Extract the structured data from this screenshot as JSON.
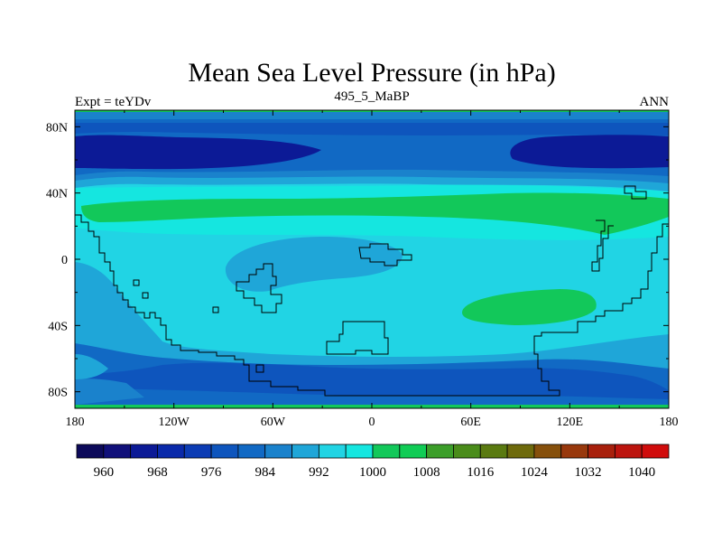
{
  "chart_data": {
    "type": "heatmap",
    "title": "Mean Sea Level Pressure (in hPa)",
    "left_label": "Expt = teYDv",
    "center_label": "495_5_MaBP",
    "right_label": "ANN",
    "x_ticks": [
      "180",
      "120W",
      "60W",
      "0",
      "60E",
      "120E",
      "180"
    ],
    "x_tick_values": [
      -180,
      -120,
      -60,
      0,
      60,
      120,
      180
    ],
    "y_ticks": [
      "80N",
      "40N",
      "0",
      "40S",
      "80S"
    ],
    "y_tick_values": [
      80,
      40,
      0,
      -40,
      -80
    ],
    "xlim": [
      -180,
      180
    ],
    "ylim": [
      -90,
      90
    ],
    "colorbar": {
      "levels": [
        956,
        960,
        964,
        968,
        972,
        976,
        980,
        984,
        988,
        992,
        996,
        1000,
        1004,
        1008,
        1012,
        1016,
        1020,
        1024,
        1028,
        1032,
        1036,
        1040
      ],
      "labels": [
        "960",
        "968",
        "976",
        "984",
        "992",
        "1000",
        "1008",
        "1016",
        "1024",
        "1032",
        "1040"
      ],
      "colors": [
        "#0d0a5a",
        "#11107a",
        "#0c1a96",
        "#0a2aaa",
        "#0c3cb4",
        "#0e55bd",
        "#1169c4",
        "#1a82cc",
        "#1fa6d8",
        "#21d4e4",
        "#15e6e0",
        "#12c85a",
        "#10cc55",
        "#3c9e2a",
        "#4a8c1a",
        "#5a7a10",
        "#6e6a0c",
        "#86500c",
        "#98380c",
        "#a8200c",
        "#bc140e",
        "#d00c0c"
      ]
    },
    "note": "Filled contours of annual mean sea level pressure over the globe, with continental outlines."
  }
}
